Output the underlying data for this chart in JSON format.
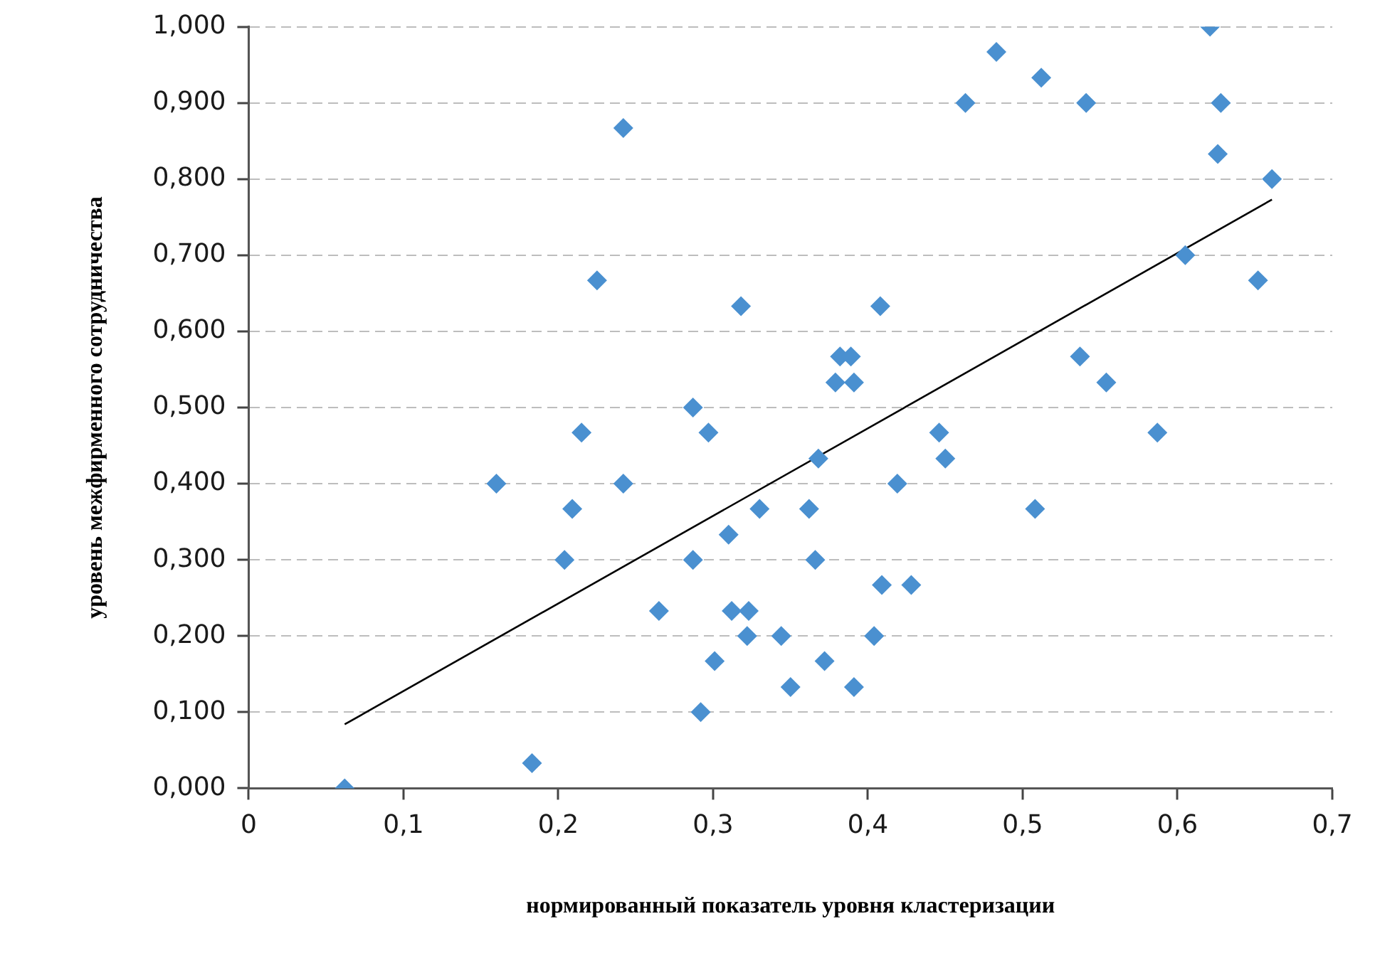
{
  "chart_data": {
    "type": "scatter",
    "xlabel": "нормированный показатель уровня кластеризации",
    "ylabel": "уровень межфирменного сотрудничества",
    "xlim": [
      0,
      0.7
    ],
    "xticks": [
      0,
      {
        "value": 0.1,
        "label": "0,1"
      },
      {
        "value": 0.2,
        "label": "0,2"
      },
      {
        "value": 0.3,
        "label": "0,3"
      },
      {
        "value": 0.4,
        "label": "0,4"
      },
      {
        "value": 0.5,
        "label": "0,5"
      },
      {
        "value": 0.6,
        "label": "0,6"
      },
      {
        "value": 0.7,
        "label": "0,7"
      }
    ],
    "ylim": [
      0,
      1
    ],
    "yticks": [
      {
        "value": 0,
        "label": "0,000"
      },
      {
        "value": 0.1,
        "label": "0,100"
      },
      {
        "value": 0.2,
        "label": "0,200"
      },
      {
        "value": 0.3,
        "label": "0,300"
      },
      {
        "value": 0.4,
        "label": "0,400"
      },
      {
        "value": 0.5,
        "label": "0,500"
      },
      {
        "value": 0.6,
        "label": "0,600"
      },
      {
        "value": 0.7,
        "label": "0,700"
      },
      {
        "value": 0.8,
        "label": "0,800"
      },
      {
        "value": 0.9,
        "label": "0,900"
      },
      {
        "value": 1,
        "label": "1,000"
      }
    ],
    "grid": "y",
    "legend": false,
    "marker": "diamond",
    "series": [
      {
        "color": "#4a90d0",
        "x": [
          0.062,
          0.183,
          0.16,
          0.215,
          0.209,
          0.204,
          0.242,
          0.287,
          0.297,
          0.287,
          0.265,
          0.31,
          0.33,
          0.312,
          0.323,
          0.322,
          0.344,
          0.301,
          0.35,
          0.292,
          0.446,
          0.45,
          0.368,
          0.419,
          0.362,
          0.508,
          0.587,
          0.366,
          0.409,
          0.428,
          0.404,
          0.372,
          0.391,
          0.621,
          0.483,
          0.512,
          0.463,
          0.541,
          0.628,
          0.626,
          0.661,
          0.605,
          0.652,
          0.408,
          0.382,
          0.389,
          0.379,
          0.391,
          0.537,
          0.554,
          0.242,
          0.225,
          0.318
        ],
        "values": [
          0.0,
          0.033,
          0.4,
          0.467,
          0.367,
          0.3,
          0.4,
          0.5,
          0.467,
          0.3,
          0.233,
          0.333,
          0.367,
          0.233,
          0.233,
          0.2,
          0.2,
          0.167,
          0.133,
          0.1,
          0.467,
          0.433,
          0.433,
          0.4,
          0.367,
          0.367,
          0.467,
          0.3,
          0.267,
          0.267,
          0.2,
          0.167,
          0.133,
          1.0,
          0.967,
          0.933,
          0.9,
          0.9,
          0.9,
          0.833,
          0.8,
          0.7,
          0.667,
          0.633,
          0.567,
          0.567,
          0.533,
          0.533,
          0.567,
          0.533,
          0.867,
          0.667,
          0.633
        ]
      },
      {
        "type": "line",
        "color": "#000000",
        "marker": "none",
        "line_style": "solid",
        "x": [
          0.062,
          0.661
        ],
        "values": [
          0.084,
          0.773
        ]
      }
    ]
  }
}
